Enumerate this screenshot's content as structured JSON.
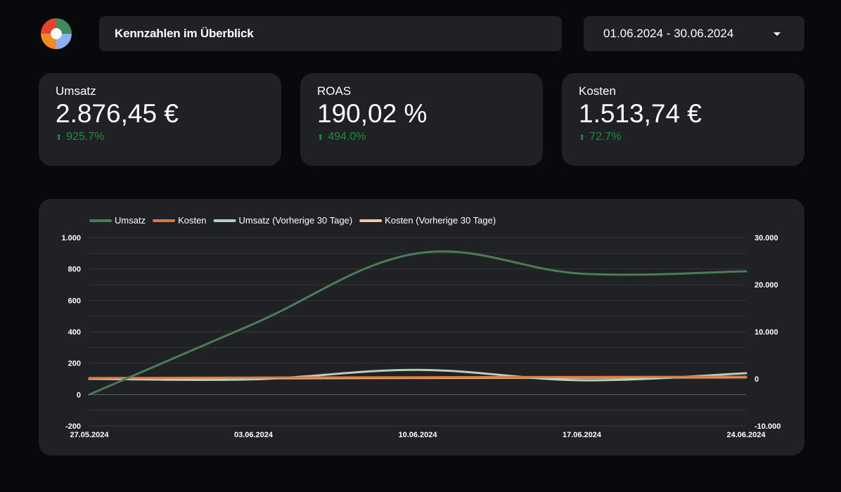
{
  "header": {
    "title": "Kennzahlen im Überblick",
    "date_range": "01.06.2024 - 30.06.2024",
    "logo_icon": "brand-logo-icon",
    "dropdown_icon": "caret-down-icon"
  },
  "kpis": [
    {
      "label": "Umsatz",
      "value": "2.876,45 €",
      "delta": "925.7%",
      "trend_icon": "arrow-up-icon"
    },
    {
      "label": "ROAS",
      "value": "190,02 %",
      "delta": "494.0%",
      "trend_icon": "arrow-up-icon"
    },
    {
      "label": "Kosten",
      "value": "1.513,74 €",
      "delta": "72.7%",
      "trend_icon": "arrow-up-icon"
    }
  ],
  "colors": {
    "background": "#08090c",
    "panel": "#202124",
    "positive": "#1e8e3e",
    "umsatz": "#4a7c59",
    "kosten": "#e07a3a",
    "umsatz_prev": "#b7cfc2",
    "kosten_prev": "#f3c6a1"
  },
  "chart_data": {
    "type": "line",
    "x": [
      "27.05.2024",
      "03.06.2024",
      "10.06.2024",
      "17.06.2024",
      "24.06.2024"
    ],
    "x_ticks": [
      "27.05.2024",
      "03.06.2024",
      "10.06.2024",
      "17.06.2024",
      "24.06.2024"
    ],
    "y_left": {
      "min": -200,
      "max": 1000,
      "ticks": [
        "1.000",
        "800",
        "600",
        "400",
        "200",
        "0",
        "-200"
      ],
      "tick_values": [
        1000,
        800,
        600,
        400,
        200,
        0,
        -200
      ]
    },
    "y_right": {
      "min": -10000,
      "max": 30000,
      "ticks": [
        "30.000",
        "20.000",
        "10.000",
        "0",
        "-10.000"
      ],
      "tick_values": [
        30000,
        20000,
        10000,
        0,
        -10000
      ]
    },
    "legend_position": "top-left",
    "grid": true,
    "series": [
      {
        "name": "Umsatz",
        "axis": "left",
        "color": "#4a7c59",
        "values": [
          0,
          450,
          900,
          770,
          785
        ]
      },
      {
        "name": "Kosten",
        "axis": "left",
        "color": "#e07a3a",
        "values": [
          105,
          108,
          110,
          112,
          113
        ]
      },
      {
        "name": "Umsatz (Vorherige 30 Tage)",
        "axis": "right",
        "color": "#b7cfc2",
        "values": [
          0,
          -100,
          1900,
          -300,
          1200
        ]
      },
      {
        "name": "Kosten (Vorherige 30 Tage)",
        "axis": "left",
        "color": "#f3c6a1",
        "values": [
          100,
          103,
          106,
          108,
          110
        ]
      }
    ]
  }
}
